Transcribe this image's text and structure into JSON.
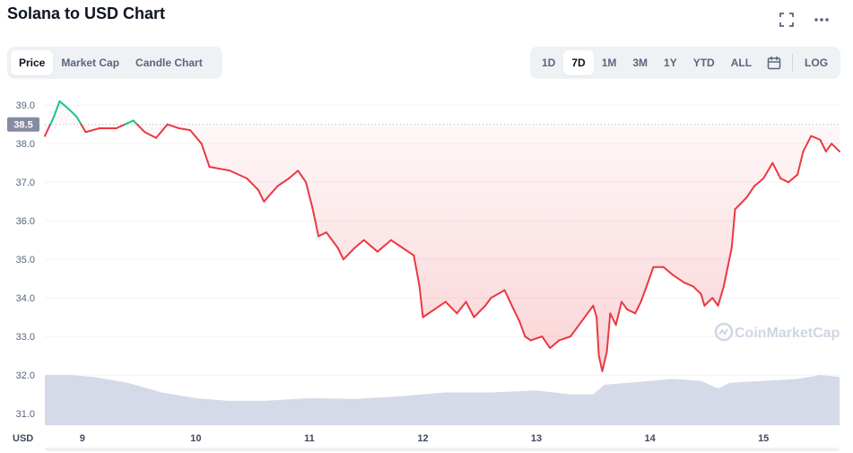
{
  "title": "Solana to USD Chart",
  "icons": {
    "fullscreen": "fullscreen-icon",
    "more": "more-icon",
    "calendar": "calendar-icon"
  },
  "tabs": [
    {
      "label": "Price",
      "active": true
    },
    {
      "label": "Market Cap",
      "active": false
    },
    {
      "label": "Candle Chart",
      "active": false
    }
  ],
  "ranges": [
    {
      "label": "1D",
      "active": false
    },
    {
      "label": "7D",
      "active": true
    },
    {
      "label": "1M",
      "active": false
    },
    {
      "label": "3M",
      "active": false
    },
    {
      "label": "1Y",
      "active": false
    },
    {
      "label": "YTD",
      "active": false
    },
    {
      "label": "ALL",
      "active": false
    }
  ],
  "log_label": "LOG",
  "watermark": "CoinMarketCap",
  "colors": {
    "up": "#16c784",
    "down": "#ea3943",
    "volume": "#cfd6e4",
    "grid": "#eff2f5",
    "current_price_bg": "#858ca2"
  },
  "chart_data": {
    "type": "line",
    "currency_label": "USD",
    "x_unit": "day",
    "xlim": [
      8.67,
      15.67
    ],
    "ylim": [
      30.7,
      39.4
    ],
    "x_ticks": [
      9,
      10,
      11,
      12,
      13,
      14,
      15
    ],
    "x_tick_labels": [
      "9",
      "10",
      "11",
      "12",
      "13",
      "14",
      "15"
    ],
    "y_ticks": [
      31.0,
      32.0,
      33.0,
      34.0,
      35.0,
      36.0,
      37.0,
      38.0,
      39.0
    ],
    "y_tick_labels": [
      "31.0",
      "32.0",
      "33.0",
      "34.0",
      "35.0",
      "36.0",
      "37.0",
      "38.0",
      "39.0"
    ],
    "reference_price": 38.5,
    "reference_label": "38.5",
    "grid": true,
    "series": [
      {
        "values": [
          [
            8.67,
            38.2
          ],
          [
            8.75,
            38.7
          ],
          [
            8.8,
            39.1
          ],
          [
            8.88,
            38.9
          ],
          [
            8.95,
            38.7
          ],
          [
            9.03,
            38.3
          ],
          [
            9.15,
            38.4
          ],
          [
            9.3,
            38.4
          ],
          [
            9.45,
            38.6
          ],
          [
            9.55,
            38.3
          ],
          [
            9.65,
            38.15
          ],
          [
            9.75,
            38.5
          ],
          [
            9.85,
            38.4
          ],
          [
            9.95,
            38.35
          ],
          [
            10.05,
            38.0
          ],
          [
            10.12,
            37.4
          ],
          [
            10.3,
            37.3
          ],
          [
            10.45,
            37.1
          ],
          [
            10.55,
            36.8
          ],
          [
            10.6,
            36.5
          ],
          [
            10.72,
            36.9
          ],
          [
            10.82,
            37.1
          ],
          [
            10.9,
            37.3
          ],
          [
            10.97,
            37.0
          ],
          [
            11.03,
            36.3
          ],
          [
            11.08,
            35.6
          ],
          [
            11.15,
            35.7
          ],
          [
            11.25,
            35.3
          ],
          [
            11.3,
            35.0
          ],
          [
            11.4,
            35.3
          ],
          [
            11.48,
            35.5
          ],
          [
            11.6,
            35.2
          ],
          [
            11.72,
            35.5
          ],
          [
            11.82,
            35.3
          ],
          [
            11.92,
            35.1
          ],
          [
            11.97,
            34.3
          ],
          [
            12.0,
            33.5
          ],
          [
            12.1,
            33.7
          ],
          [
            12.2,
            33.9
          ],
          [
            12.3,
            33.6
          ],
          [
            12.38,
            33.9
          ],
          [
            12.45,
            33.5
          ],
          [
            12.55,
            33.8
          ],
          [
            12.6,
            34.0
          ],
          [
            12.72,
            34.2
          ],
          [
            12.8,
            33.7
          ],
          [
            12.85,
            33.4
          ],
          [
            12.9,
            33.0
          ],
          [
            12.95,
            32.9
          ],
          [
            13.05,
            33.0
          ],
          [
            13.12,
            32.7
          ],
          [
            13.2,
            32.9
          ],
          [
            13.3,
            33.0
          ],
          [
            13.35,
            33.2
          ],
          [
            13.4,
            33.4
          ],
          [
            13.5,
            33.8
          ],
          [
            13.53,
            33.5
          ],
          [
            13.55,
            32.5
          ],
          [
            13.58,
            32.1
          ],
          [
            13.62,
            32.6
          ],
          [
            13.65,
            33.6
          ],
          [
            13.7,
            33.3
          ],
          [
            13.75,
            33.9
          ],
          [
            13.8,
            33.7
          ],
          [
            13.87,
            33.6
          ],
          [
            13.92,
            33.9
          ],
          [
            13.97,
            34.3
          ],
          [
            14.03,
            34.8
          ],
          [
            14.12,
            34.8
          ],
          [
            14.2,
            34.6
          ],
          [
            14.3,
            34.4
          ],
          [
            14.38,
            34.3
          ],
          [
            14.45,
            34.1
          ],
          [
            14.48,
            33.8
          ],
          [
            14.55,
            34.0
          ],
          [
            14.6,
            33.8
          ],
          [
            14.65,
            34.3
          ],
          [
            14.72,
            35.3
          ],
          [
            14.75,
            36.3
          ],
          [
            14.85,
            36.6
          ],
          [
            14.92,
            36.9
          ],
          [
            15.0,
            37.1
          ],
          [
            15.08,
            37.5
          ],
          [
            15.15,
            37.1
          ],
          [
            15.22,
            37.0
          ],
          [
            15.3,
            37.2
          ],
          [
            15.35,
            37.8
          ],
          [
            15.42,
            38.2
          ],
          [
            15.5,
            38.1
          ],
          [
            15.55,
            37.8
          ],
          [
            15.6,
            38.0
          ],
          [
            15.67,
            37.8
          ]
        ]
      }
    ],
    "volume": [
      [
        8.67,
        32.0
      ],
      [
        8.9,
        32.0
      ],
      [
        9.1,
        31.95
      ],
      [
        9.4,
        31.8
      ],
      [
        9.7,
        31.55
      ],
      [
        10.0,
        31.4
      ],
      [
        10.3,
        31.33
      ],
      [
        10.6,
        31.33
      ],
      [
        11.0,
        31.4
      ],
      [
        11.4,
        31.38
      ],
      [
        11.8,
        31.45
      ],
      [
        12.2,
        31.55
      ],
      [
        12.6,
        31.55
      ],
      [
        13.0,
        31.6
      ],
      [
        13.3,
        31.5
      ],
      [
        13.5,
        31.5
      ],
      [
        13.6,
        31.75
      ],
      [
        13.8,
        31.8
      ],
      [
        14.0,
        31.85
      ],
      [
        14.2,
        31.9
      ],
      [
        14.45,
        31.85
      ],
      [
        14.6,
        31.65
      ],
      [
        14.7,
        31.8
      ],
      [
        15.0,
        31.85
      ],
      [
        15.3,
        31.9
      ],
      [
        15.5,
        32.0
      ],
      [
        15.67,
        31.95
      ]
    ]
  }
}
